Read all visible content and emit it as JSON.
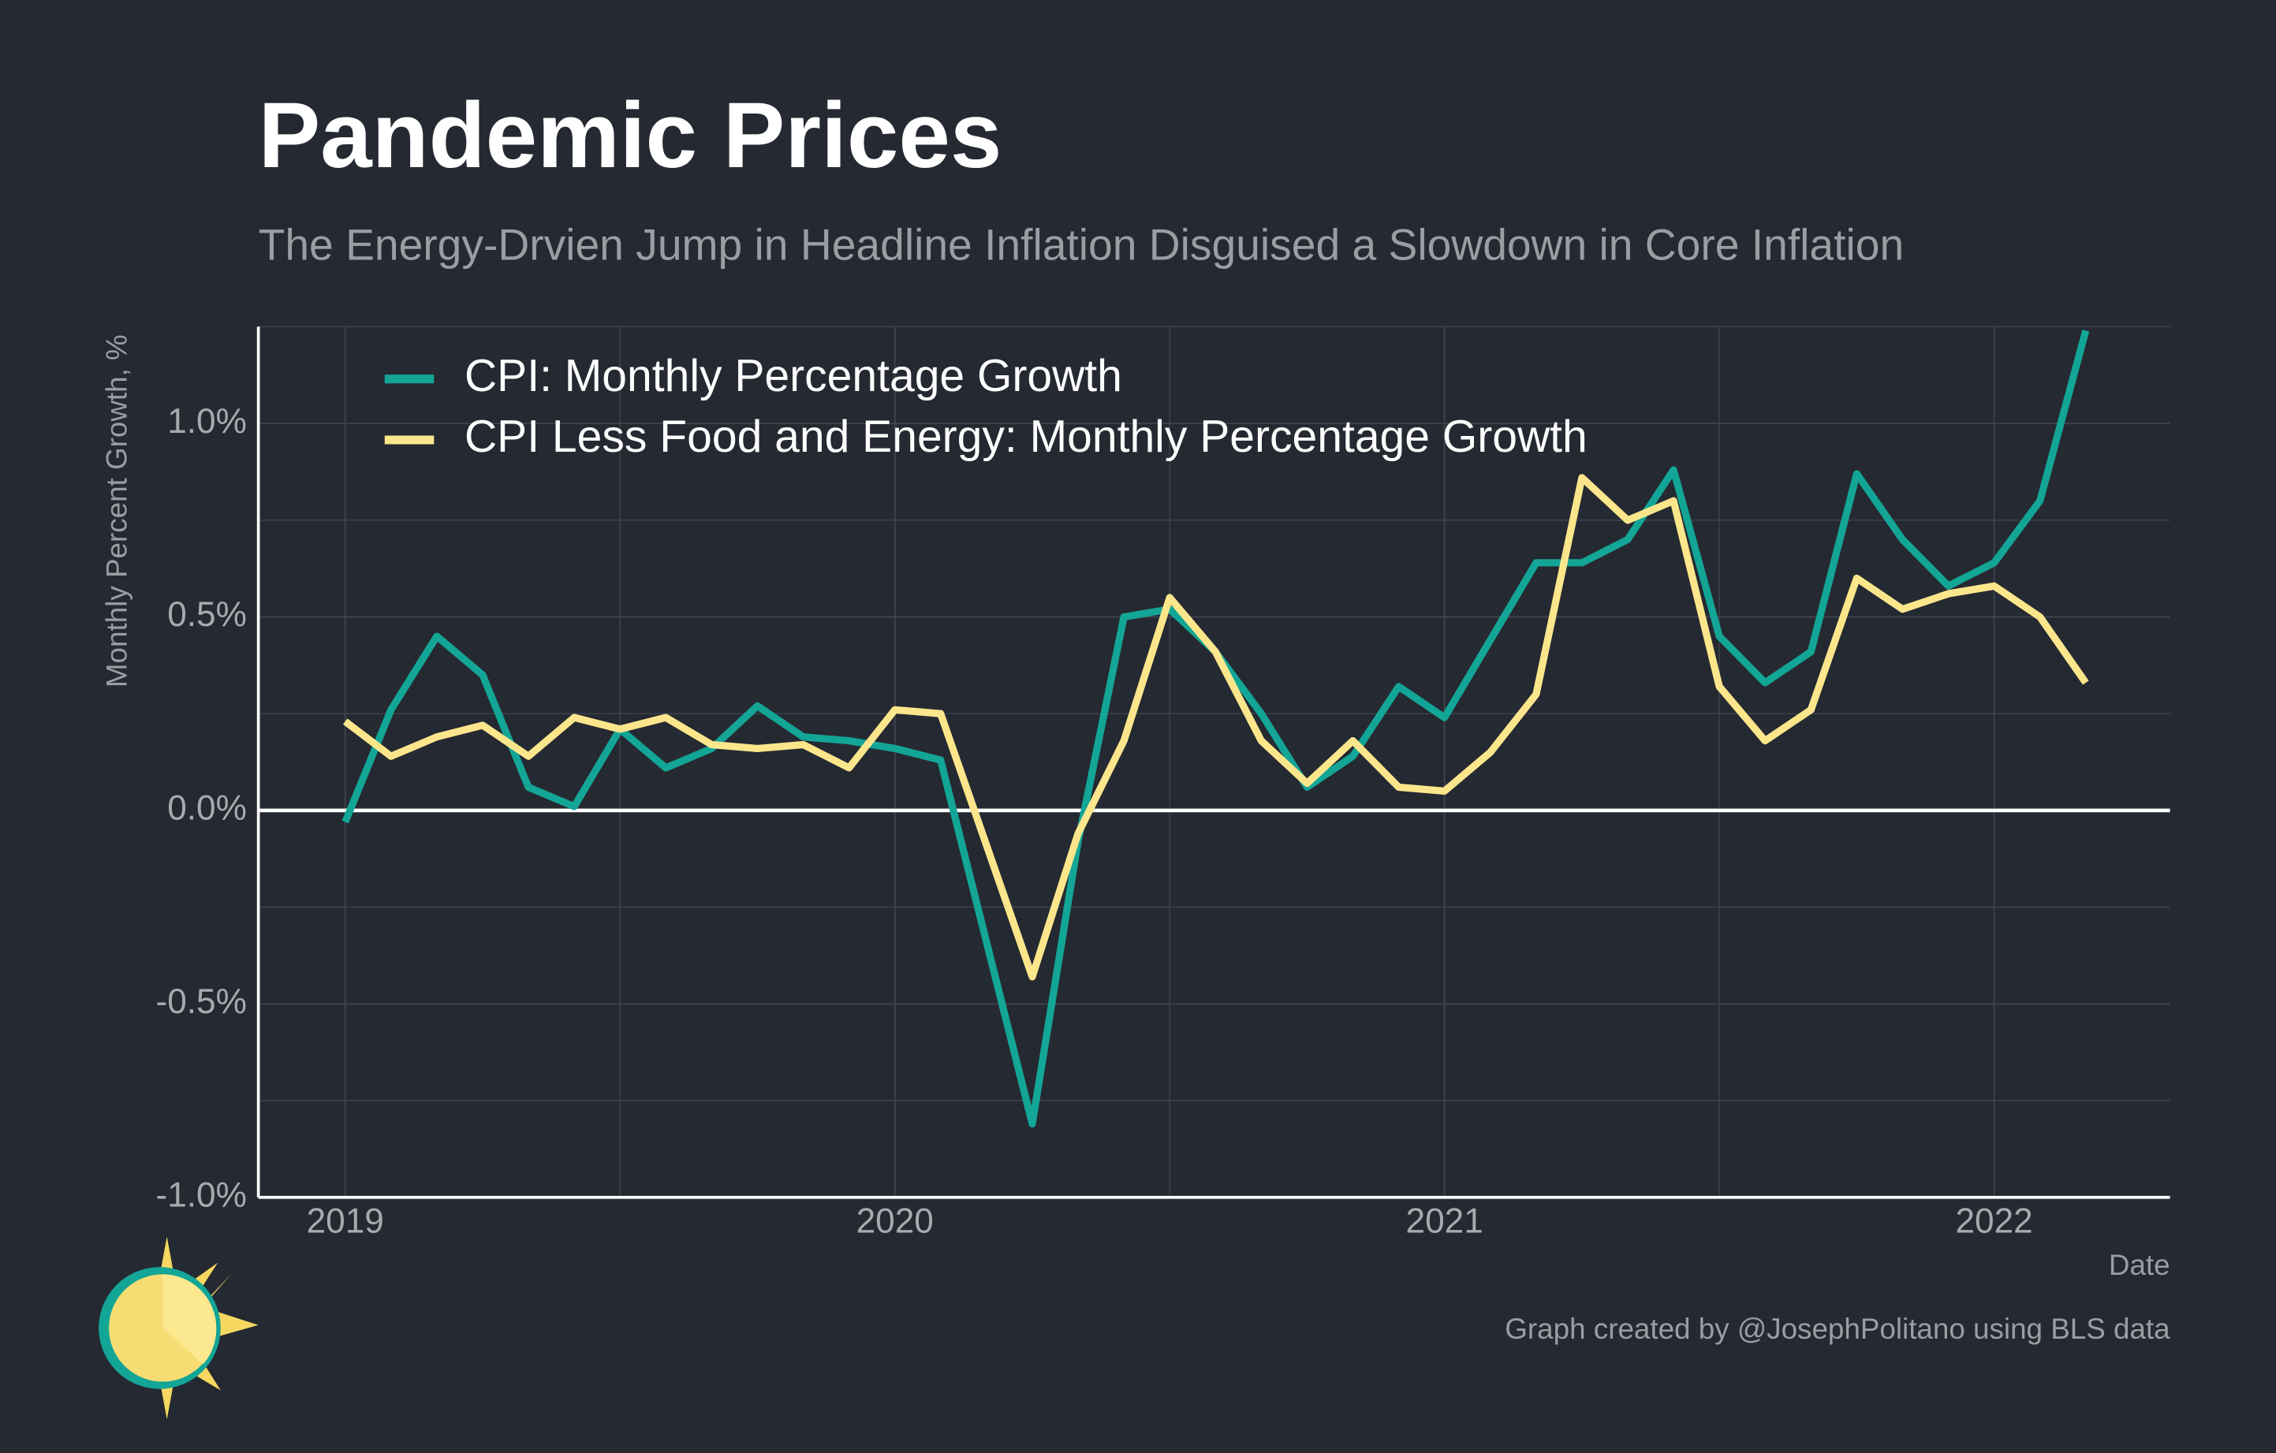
{
  "chart_data": {
    "type": "line",
    "title": "Pandemic Prices",
    "subtitle": "The Energy-Drvien Jump in Headline Inflation Disguised a Slowdown in Core Inflation",
    "y_label": "Monthly Percent Growth, %",
    "x_label": "Date",
    "caption": "Graph created by @JosephPolitano using BLS data",
    "x": [
      2019,
      2019.0833,
      2019.1667,
      2019.25,
      2019.3333,
      2019.4167,
      2019.5,
      2019.5833,
      2019.6667,
      2019.75,
      2019.8333,
      2019.9167,
      2020,
      2020.0833,
      2020.1667,
      2020.25,
      2020.3333,
      2020.4167,
      2020.5,
      2020.5833,
      2020.6667,
      2020.75,
      2020.8333,
      2020.9167,
      2021,
      2021.0833,
      2021.1667,
      2021.25,
      2021.3333,
      2021.4167,
      2021.5,
      2021.5833,
      2021.6667,
      2021.75,
      2021.8333,
      2021.9167,
      2022,
      2022.0833,
      2022.1667
    ],
    "series": [
      {
        "name": "CPI: Monthly Percentage Growth",
        "color": "#13a596",
        "values": [
          -0.03,
          0.26,
          0.45,
          0.35,
          0.06,
          0.01,
          0.21,
          0.11,
          0.16,
          0.27,
          0.19,
          0.18,
          0.16,
          0.13,
          -0.34,
          -0.81,
          -0.08,
          0.5,
          0.52,
          0.41,
          0.25,
          0.06,
          0.14,
          0.32,
          0.24,
          0.44,
          0.64,
          0.64,
          0.7,
          0.88,
          0.45,
          0.33,
          0.41,
          0.87,
          0.7,
          0.58,
          0.64,
          0.8,
          1.24
        ]
      },
      {
        "name": "CPI Less Food and Energy: Monthly Percentage Growth",
        "color": "#fce68c",
        "values": [
          0.23,
          0.14,
          0.19,
          0.22,
          0.14,
          0.24,
          0.21,
          0.24,
          0.17,
          0.16,
          0.17,
          0.11,
          0.26,
          0.25,
          -0.09,
          -0.43,
          -0.06,
          0.18,
          0.55,
          0.41,
          0.18,
          0.07,
          0.18,
          0.06,
          0.05,
          0.15,
          0.3,
          0.86,
          0.75,
          0.8,
          0.32,
          0.18,
          0.26,
          0.6,
          0.52,
          0.56,
          0.58,
          0.5,
          0.33
        ]
      }
    ],
    "xlim": [
      2018.842,
      2022.32
    ],
    "xticks": [
      2019,
      2020,
      2021,
      2022
    ],
    "ylim": [
      -1.0,
      1.25
    ],
    "yticks": [
      {
        "value": -1,
        "label": "-1.0%"
      },
      {
        "value": -0.5,
        "label": "-0.5%"
      },
      {
        "value": 0,
        "label": "0.0%"
      },
      {
        "value": 0.5,
        "label": "0.5%"
      },
      {
        "value": 1,
        "label": "1.0%"
      }
    ],
    "grid": true,
    "zero_line": true,
    "legend": "top-left"
  }
}
